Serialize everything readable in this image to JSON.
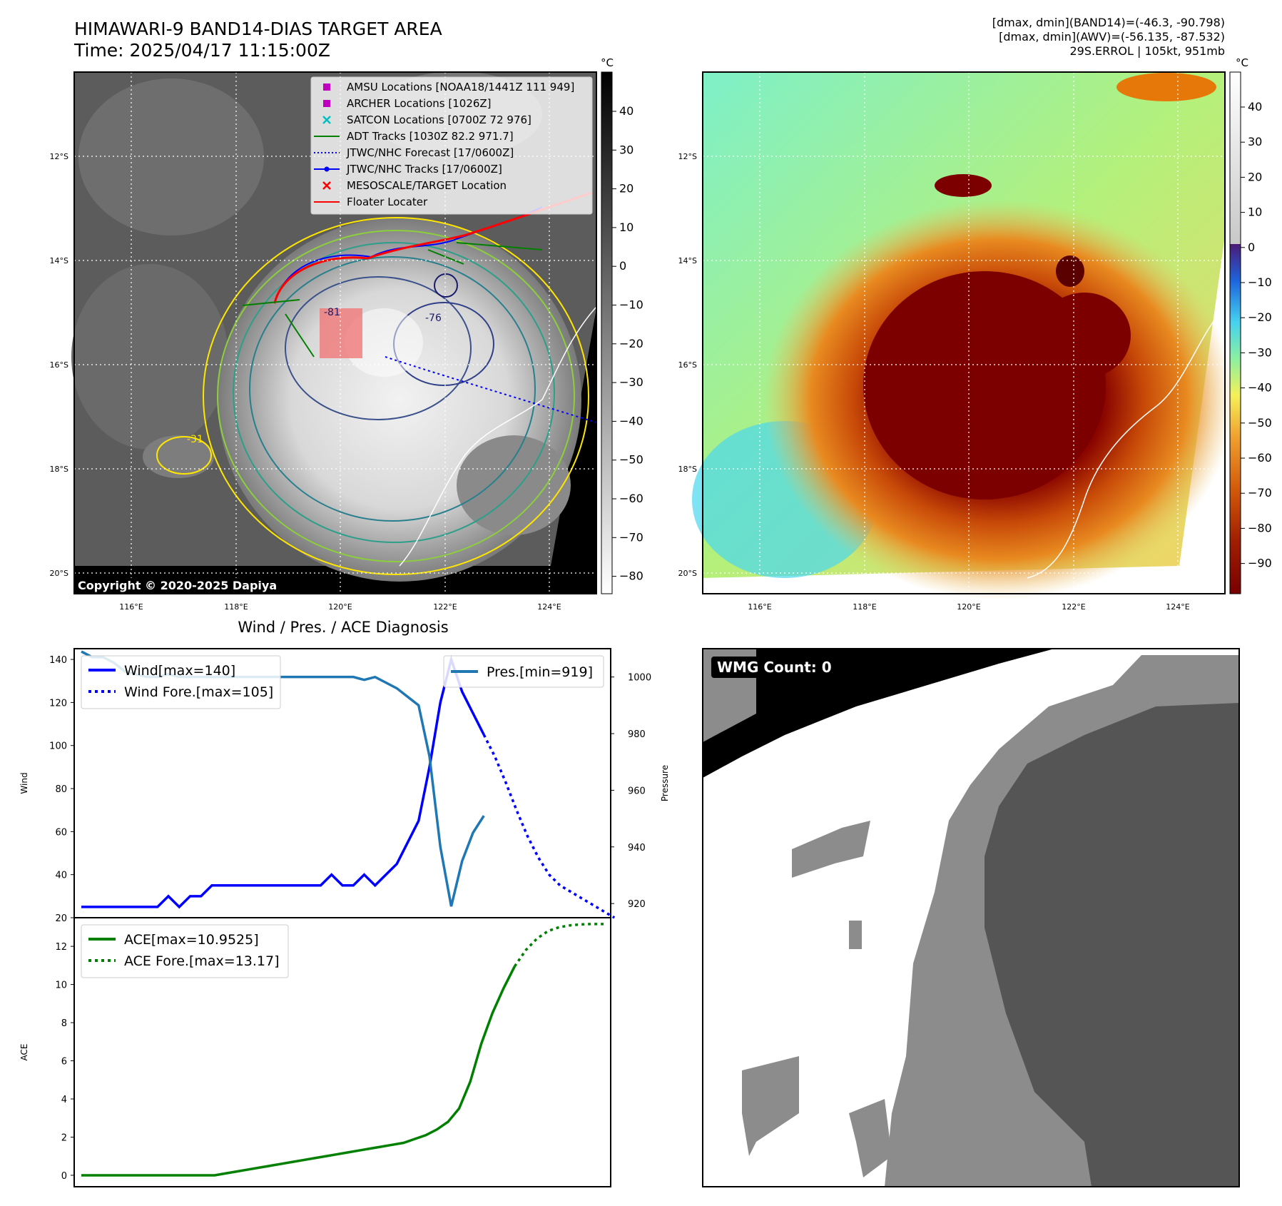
{
  "header": {
    "title_line1": "HIMAWARI-9 BAND14-DIAS TARGET AREA",
    "title_line2": "Time: 2025/04/17 11:15:00Z",
    "info_line1": "[dmax, dmin](BAND14)=(-46.3, -90.798)",
    "info_line2": "[dmax, dmin](AWV)=(-56.135, -87.532)",
    "info_line3": "29S.ERROL | 105kt, 951mb"
  },
  "map": {
    "lat_labels": [
      "12°S",
      "14°S",
      "16°S",
      "18°S",
      "20°S"
    ],
    "lon_labels": [
      "116°E",
      "118°E",
      "120°E",
      "122°E",
      "124°E"
    ],
    "copyright": "Copyright © 2020-2025 Dapiya",
    "legend": [
      {
        "label": "AMSU Locations [NOAA18/1441Z 111 949]",
        "color": "#bf00bf",
        "marker": "square"
      },
      {
        "label": "ARCHER Locations [1026Z]",
        "color": "#bf00bf",
        "marker": "square"
      },
      {
        "label": "SATCON Locations [0700Z 72 976]",
        "color": "#00bfbf",
        "marker": "x"
      },
      {
        "label": "ADT Tracks [1030Z 82.2 971.7]",
        "color": "#008000",
        "marker": "line"
      },
      {
        "label": "JTWC/NHC Forecast [17/0600Z]",
        "color": "#0000ff",
        "marker": "dotted"
      },
      {
        "label": "JTWC/NHC Tracks [17/0600Z]",
        "color": "#0000ff",
        "marker": "line-dot"
      },
      {
        "label": "MESOSCALE/TARGET Location",
        "color": "#ff0000",
        "marker": "x"
      },
      {
        "label": "Floater Locater",
        "color": "#ff0000",
        "marker": "line"
      }
    ],
    "contour_labels": [
      "-81",
      "-76",
      "-31",
      "-31"
    ]
  },
  "colorbars": {
    "unit": "°C",
    "left_ticks": [
      "40",
      "30",
      "20",
      "10",
      "0",
      "−10",
      "−20",
      "−30",
      "−40",
      "−50",
      "−60",
      "−70",
      "−80"
    ],
    "right_ticks": [
      "40",
      "30",
      "20",
      "10",
      "0",
      "−10",
      "−20",
      "−30",
      "−40",
      "−50",
      "−60",
      "−70",
      "−80",
      "−90"
    ]
  },
  "wmg": {
    "label": "WMG Count: 0"
  },
  "chart_data": [
    {
      "type": "line",
      "title": "Wind / Pres. / ACE Diagnosis",
      "ylabel": "Wind",
      "ylim": [
        20,
        145
      ],
      "yticks": [
        "140",
        "120",
        "100",
        "80",
        "60",
        "40",
        "20"
      ],
      "series": [
        {
          "name": "Wind[max=140]",
          "style": "solid",
          "color": "#0000ff",
          "values": [
            25,
            25,
            25,
            25,
            25,
            25,
            25,
            25,
            30,
            25,
            30,
            30,
            35,
            35,
            35,
            35,
            35,
            35,
            35,
            35,
            35,
            35,
            35,
            40,
            35,
            35,
            40,
            35,
            40,
            45,
            55,
            65,
            90,
            120,
            140,
            125,
            115,
            105
          ]
        },
        {
          "name": "Wind Fore.[max=105]",
          "style": "dotted",
          "color": "#0000ff",
          "x_start": 37,
          "values": [
            105,
            95,
            83,
            70,
            58,
            48,
            40,
            35,
            32,
            29,
            26,
            23,
            20
          ]
        }
      ],
      "secondary": {
        "ylabel": "Pressure",
        "ylim": [
          915,
          1010
        ],
        "yticks": [
          "1000",
          "980",
          "960",
          "940",
          "920"
        ],
        "series": [
          {
            "name": "Pres.[min=919]",
            "style": "solid",
            "color": "#1f77b4",
            "values": [
              1009,
              1007,
              1007,
              1005,
              1002,
              1001,
              1000,
              1000,
              1001,
              1000,
              1000,
              1000,
              1000,
              1000,
              1000,
              1000,
              1000,
              1000,
              1000,
              1000,
              1000,
              1000,
              1000,
              1000,
              1000,
              1000,
              999,
              1000,
              998,
              996,
              993,
              990,
              972,
              940,
              919,
              935,
              945,
              951
            ]
          }
        ]
      }
    },
    {
      "type": "line",
      "ylabel": "ACE",
      "ylim": [
        -0.6,
        13.5
      ],
      "yticks": [
        "12",
        "10",
        "8",
        "6",
        "4",
        "2",
        "0"
      ],
      "series": [
        {
          "name": "ACE[max=10.9525]",
          "style": "solid",
          "color": "#008000",
          "values": [
            0,
            0,
            0,
            0,
            0,
            0,
            0,
            0,
            0,
            0,
            0,
            0,
            0,
            0.1,
            0.2,
            0.3,
            0.4,
            0.5,
            0.6,
            0.7,
            0.8,
            0.9,
            1.0,
            1.1,
            1.2,
            1.3,
            1.4,
            1.5,
            1.6,
            1.7,
            1.9,
            2.1,
            2.4,
            2.8,
            3.5,
            4.9,
            6.9,
            8.5,
            9.8,
            10.95
          ]
        },
        {
          "name": "ACE Fore.[max=13.17]",
          "style": "dotted",
          "color": "#008000",
          "x_start": 39,
          "values": [
            10.95,
            11.8,
            12.4,
            12.8,
            13.0,
            13.1,
            13.15,
            13.17,
            13.17
          ]
        }
      ]
    }
  ]
}
